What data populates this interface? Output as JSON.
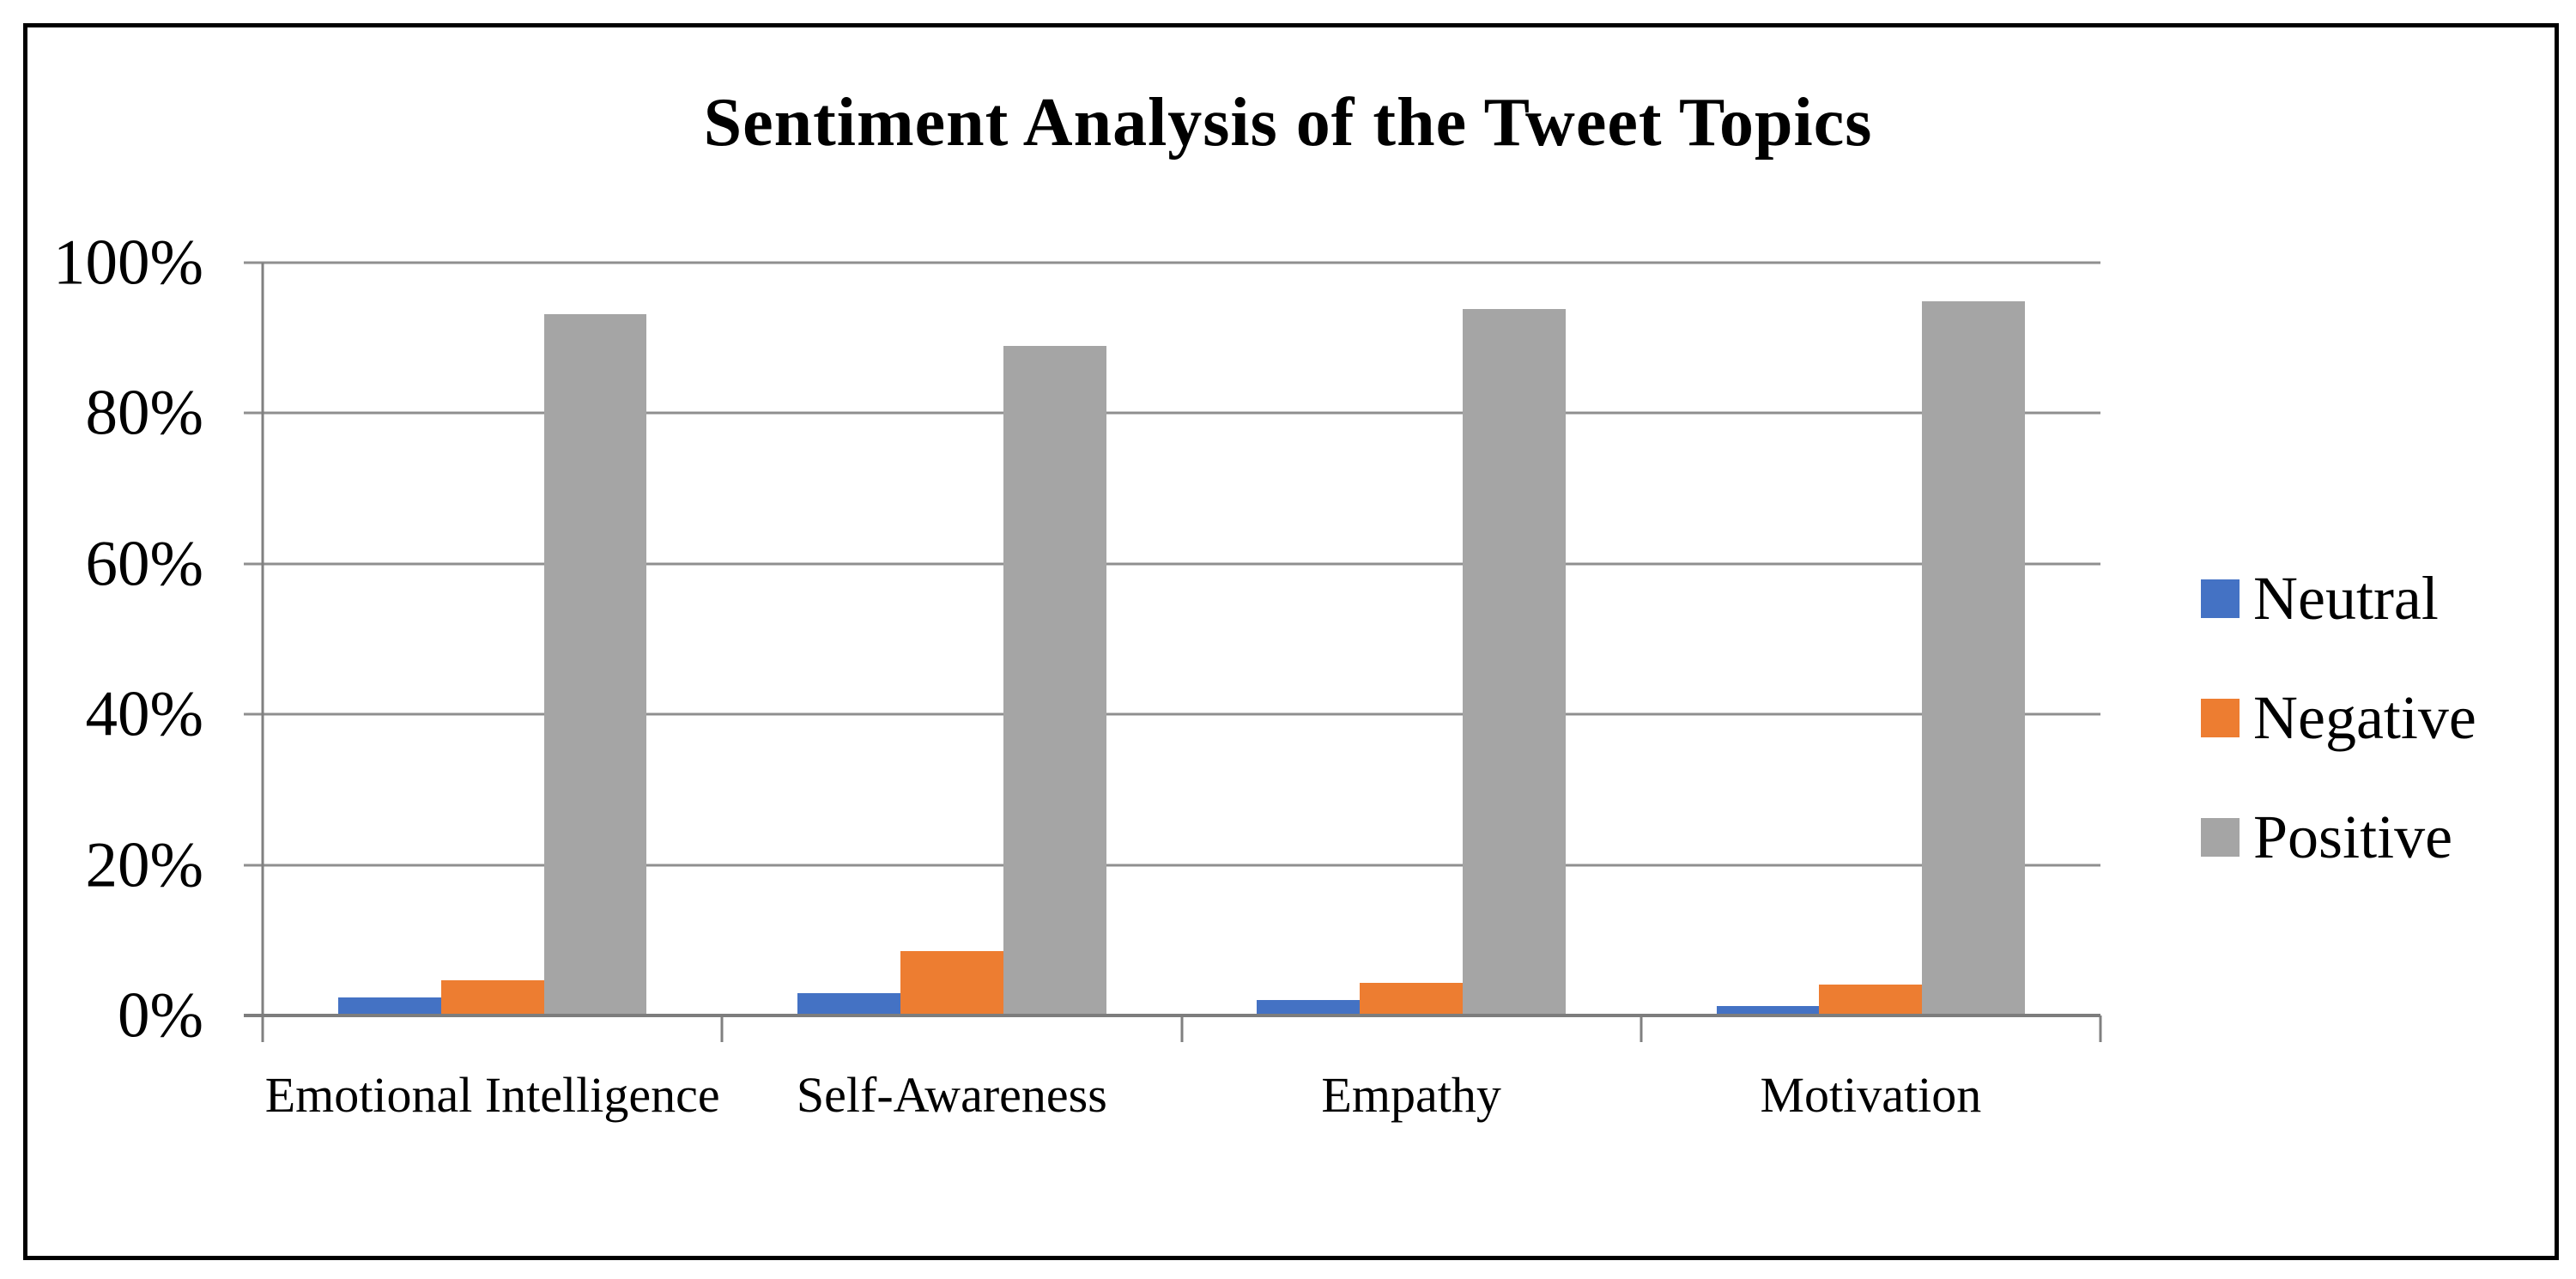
{
  "chart_data": {
    "type": "bar",
    "title": "Sentiment Analysis of the Tweet Topics",
    "categories": [
      "Emotional Intelligence",
      "Self-Awareness",
      "Empathy",
      "Motivation"
    ],
    "series": [
      {
        "name": "Neutral",
        "color": "#4472C4",
        "values": [
          2.4,
          3.0,
          2.1,
          1.3
        ]
      },
      {
        "name": "Negative",
        "color": "#ED7D31",
        "values": [
          4.7,
          8.5,
          4.3,
          4.1
        ]
      },
      {
        "name": "Positive",
        "color": "#A5A5A5",
        "values": [
          93.2,
          88.9,
          93.9,
          94.9
        ]
      }
    ],
    "y_axis": {
      "ticks": [
        "0%",
        "20%",
        "40%",
        "60%",
        "80%",
        "100%"
      ],
      "min": 0,
      "max": 100
    },
    "grid": true,
    "legend_position": "right"
  },
  "style_colors": {
    "gridline": "#8F8F8F",
    "axis": "#808080",
    "border": "#000000",
    "background": "#FFFFFF"
  }
}
